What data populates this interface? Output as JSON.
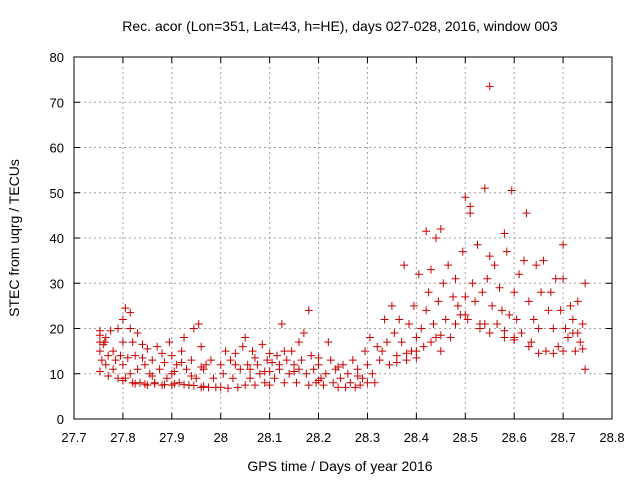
{
  "chart_data": {
    "type": "scatter",
    "title": "Rec. acor (Lon=351, Lat=43, h=HE), days 027-028, 2016, window 003",
    "xlabel": "GPS time / Days of year 2016",
    "ylabel": "STEC from uqrg / TECUs",
    "xlim": [
      27.7,
      28.8
    ],
    "ylim": [
      0,
      80
    ],
    "xticks": [
      27.7,
      27.8,
      27.9,
      28,
      28.1,
      28.2,
      28.3,
      28.4,
      28.5,
      28.6,
      28.7,
      28.8
    ],
    "xtick_labels": [
      "27.7",
      "27.8",
      "27.9",
      "28",
      "28.1",
      "28.2",
      "28.3",
      "28.4",
      "28.5",
      "28.6",
      "28.7",
      "28.8"
    ],
    "yticks": [
      0,
      10,
      20,
      30,
      40,
      50,
      60,
      70,
      80
    ],
    "ytick_labels": [
      "0",
      "10",
      "20",
      "30",
      "40",
      "50",
      "60",
      "70",
      "80"
    ],
    "grid": true,
    "marker": "+",
    "color": "#cc0000",
    "points": [
      [
        27.753,
        17
      ],
      [
        27.753,
        18.5
      ],
      [
        27.753,
        19.5
      ],
      [
        27.753,
        15
      ],
      [
        27.753,
        10.5
      ],
      [
        27.757,
        13
      ],
      [
        27.76,
        16.5
      ],
      [
        27.763,
        17
      ],
      [
        27.765,
        18
      ],
      [
        27.765,
        12
      ],
      [
        27.77,
        14
      ],
      [
        27.77,
        9.5
      ],
      [
        27.775,
        19.5
      ],
      [
        27.78,
        15
      ],
      [
        27.78,
        11
      ],
      [
        27.785,
        13
      ],
      [
        27.79,
        20
      ],
      [
        27.79,
        9
      ],
      [
        27.795,
        14
      ],
      [
        27.8,
        22
      ],
      [
        27.8,
        17
      ],
      [
        27.8,
        12
      ],
      [
        27.8,
        8.5
      ],
      [
        27.805,
        24.5
      ],
      [
        27.805,
        9
      ],
      [
        27.81,
        13.5
      ],
      [
        27.815,
        23.5
      ],
      [
        27.815,
        20
      ],
      [
        27.815,
        10
      ],
      [
        27.82,
        17
      ],
      [
        27.82,
        8
      ],
      [
        27.825,
        14
      ],
      [
        27.83,
        19
      ],
      [
        27.83,
        11
      ],
      [
        27.835,
        8
      ],
      [
        27.84,
        16.5
      ],
      [
        27.845,
        12
      ],
      [
        27.85,
        15.5
      ],
      [
        27.85,
        7.5
      ],
      [
        27.855,
        10
      ],
      [
        27.86,
        13
      ],
      [
        27.865,
        8
      ],
      [
        27.87,
        16
      ],
      [
        27.875,
        11
      ],
      [
        27.88,
        7.5
      ],
      [
        27.885,
        12.5
      ],
      [
        27.89,
        9
      ],
      [
        27.895,
        17
      ],
      [
        27.9,
        14
      ],
      [
        27.9,
        7.5
      ],
      [
        27.905,
        10.5
      ],
      [
        27.91,
        12
      ],
      [
        27.915,
        8
      ],
      [
        27.92,
        15
      ],
      [
        27.925,
        18
      ],
      [
        27.93,
        11
      ],
      [
        27.935,
        7.5
      ],
      [
        27.94,
        13
      ],
      [
        27.945,
        20
      ],
      [
        27.95,
        9
      ],
      [
        27.955,
        21
      ],
      [
        27.96,
        16
      ],
      [
        27.96,
        7
      ],
      [
        27.965,
        11
      ],
      [
        27.97,
        12
      ],
      [
        27.975,
        7
      ],
      [
        27.98,
        13
      ],
      [
        27.985,
        9
      ],
      [
        27.99,
        7
      ],
      [
        27.825,
        7.8
      ],
      [
        27.845,
        7.7
      ],
      [
        27.865,
        7.8
      ],
      [
        27.885,
        7.6
      ],
      [
        27.905,
        7.8
      ],
      [
        27.925,
        7.6
      ],
      [
        27.945,
        7.4
      ],
      [
        27.965,
        7.2
      ],
      [
        27.86,
        9.5
      ],
      [
        27.9,
        10
      ],
      [
        27.94,
        9.5
      ],
      [
        27.84,
        13.5
      ],
      [
        27.88,
        14.5
      ],
      [
        27.92,
        12.5
      ],
      [
        27.96,
        11.5
      ],
      [
        28.0,
        12
      ],
      [
        28.0,
        7
      ],
      [
        28.005,
        10
      ],
      [
        28.01,
        15
      ],
      [
        28.015,
        6.8
      ],
      [
        28.02,
        13
      ],
      [
        28.025,
        9
      ],
      [
        28.03,
        14.5
      ],
      [
        28.035,
        7
      ],
      [
        28.04,
        11
      ],
      [
        28.045,
        16
      ],
      [
        28.05,
        18
      ],
      [
        28.05,
        7.5
      ],
      [
        28.055,
        12
      ],
      [
        28.06,
        9
      ],
      [
        28.065,
        15
      ],
      [
        28.07,
        7.5
      ],
      [
        28.075,
        12
      ],
      [
        28.08,
        10
      ],
      [
        28.085,
        16.5
      ],
      [
        28.09,
        8
      ],
      [
        28.095,
        13
      ],
      [
        28.1,
        10.5
      ],
      [
        28.1,
        7.5
      ],
      [
        28.105,
        12.5
      ],
      [
        28.11,
        9
      ],
      [
        28.115,
        14
      ],
      [
        28.12,
        11
      ],
      [
        28.125,
        21
      ],
      [
        28.13,
        8
      ],
      [
        28.135,
        13
      ],
      [
        28.14,
        10
      ],
      [
        28.145,
        15
      ],
      [
        28.15,
        12
      ],
      [
        28.155,
        8
      ],
      [
        28.16,
        17
      ],
      [
        28.165,
        13
      ],
      [
        28.17,
        19
      ],
      [
        28.175,
        10
      ],
      [
        28.18,
        24
      ],
      [
        28.18,
        7.5
      ],
      [
        28.185,
        14
      ],
      [
        28.19,
        11
      ],
      [
        28.195,
        8
      ],
      [
        28.2,
        12
      ],
      [
        28.205,
        9
      ],
      [
        28.21,
        7.5
      ],
      [
        28.215,
        10
      ],
      [
        28.22,
        17
      ],
      [
        28.225,
        13
      ],
      [
        28.23,
        8
      ],
      [
        28.235,
        11
      ],
      [
        28.24,
        7
      ],
      [
        28.245,
        9
      ],
      [
        28.25,
        12
      ],
      [
        28.255,
        7
      ],
      [
        28.26,
        10
      ],
      [
        28.265,
        8
      ],
      [
        28.27,
        13
      ],
      [
        28.275,
        7
      ],
      [
        28.28,
        11
      ],
      [
        28.285,
        7.5
      ],
      [
        28.29,
        9
      ],
      [
        28.295,
        15
      ],
      [
        28.3,
        12
      ],
      [
        28.3,
        8
      ],
      [
        28.305,
        18
      ],
      [
        28.31,
        10
      ],
      [
        28.315,
        8
      ],
      [
        28.32,
        16
      ],
      [
        28.325,
        13
      ],
      [
        28.03,
        12
      ],
      [
        28.06,
        11
      ],
      [
        28.09,
        10.5
      ],
      [
        28.12,
        12
      ],
      [
        28.15,
        10.5
      ],
      [
        28.2,
        8.5
      ],
      [
        28.24,
        11.5
      ],
      [
        28.28,
        9.5
      ],
      [
        28.2,
        13.5
      ],
      [
        28.16,
        11
      ],
      [
        28.13,
        15
      ],
      [
        28.07,
        13.5
      ],
      [
        28.1,
        14.5
      ],
      [
        28.33,
        15
      ],
      [
        28.335,
        22
      ],
      [
        28.34,
        17
      ],
      [
        28.345,
        12
      ],
      [
        28.35,
        25
      ],
      [
        28.355,
        19
      ],
      [
        28.36,
        14
      ],
      [
        28.365,
        22
      ],
      [
        28.37,
        17
      ],
      [
        28.375,
        34
      ],
      [
        28.38,
        13
      ],
      [
        28.385,
        21
      ],
      [
        28.39,
        15
      ],
      [
        28.395,
        25
      ],
      [
        28.4,
        18
      ],
      [
        28.4,
        13.5
      ],
      [
        28.405,
        32
      ],
      [
        28.41,
        20
      ],
      [
        28.415,
        16
      ],
      [
        28.42,
        41.5
      ],
      [
        28.42,
        24
      ],
      [
        28.425,
        28
      ],
      [
        28.43,
        33
      ],
      [
        28.435,
        21
      ],
      [
        28.44,
        18
      ],
      [
        28.44,
        40
      ],
      [
        28.445,
        26
      ],
      [
        28.45,
        15
      ],
      [
        28.45,
        42
      ],
      [
        28.455,
        30
      ],
      [
        28.46,
        22
      ],
      [
        28.465,
        34
      ],
      [
        28.47,
        18
      ],
      [
        28.475,
        27
      ],
      [
        28.48,
        31
      ],
      [
        28.485,
        25
      ],
      [
        28.49,
        23
      ],
      [
        28.495,
        37
      ],
      [
        28.5,
        49
      ],
      [
        28.5,
        27
      ],
      [
        28.505,
        22
      ],
      [
        28.51,
        47
      ],
      [
        28.51,
        45.5
      ],
      [
        28.515,
        30
      ],
      [
        28.52,
        26
      ],
      [
        28.525,
        38.5
      ],
      [
        28.53,
        21
      ],
      [
        28.535,
        28
      ],
      [
        28.54,
        51
      ],
      [
        28.54,
        21
      ],
      [
        28.545,
        31
      ],
      [
        28.55,
        73.5
      ],
      [
        28.55,
        36
      ],
      [
        28.555,
        25
      ],
      [
        28.56,
        34
      ],
      [
        28.565,
        21
      ],
      [
        28.57,
        29
      ],
      [
        28.575,
        24
      ],
      [
        28.58,
        41
      ],
      [
        28.58,
        18
      ],
      [
        28.585,
        37
      ],
      [
        28.59,
        23
      ],
      [
        28.595,
        50.5
      ],
      [
        28.6,
        28
      ],
      [
        28.6,
        17.5
      ],
      [
        28.605,
        22
      ],
      [
        28.61,
        32
      ],
      [
        28.615,
        19
      ],
      [
        28.62,
        35
      ],
      [
        28.625,
        45.5
      ],
      [
        28.63,
        26
      ],
      [
        28.635,
        17
      ],
      [
        28.64,
        22
      ],
      [
        28.645,
        34
      ],
      [
        28.65,
        20
      ],
      [
        28.655,
        28
      ],
      [
        28.66,
        35
      ],
      [
        28.665,
        15
      ],
      [
        28.67,
        24
      ],
      [
        28.675,
        28
      ],
      [
        28.68,
        20
      ],
      [
        28.685,
        31
      ],
      [
        28.69,
        16
      ],
      [
        28.695,
        24
      ],
      [
        28.7,
        38.5
      ],
      [
        28.7,
        31
      ],
      [
        28.705,
        20
      ],
      [
        28.71,
        18
      ],
      [
        28.715,
        25
      ],
      [
        28.72,
        22
      ],
      [
        28.725,
        15
      ],
      [
        28.73,
        26
      ],
      [
        28.73,
        19
      ],
      [
        28.735,
        17
      ],
      [
        28.74,
        21
      ],
      [
        28.74,
        15.5
      ],
      [
        28.745,
        30
      ],
      [
        28.745,
        11
      ],
      [
        28.4,
        15
      ],
      [
        28.45,
        18.5
      ],
      [
        28.5,
        23
      ],
      [
        28.55,
        19
      ],
      [
        28.6,
        18
      ],
      [
        28.65,
        14.5
      ],
      [
        28.7,
        15
      ],
      [
        28.43,
        17
      ],
      [
        28.48,
        21
      ],
      [
        28.53,
        20
      ],
      [
        28.58,
        19.5
      ],
      [
        28.63,
        16
      ],
      [
        28.68,
        14.5
      ],
      [
        28.72,
        19
      ],
      [
        28.36,
        12.5
      ],
      [
        28.38,
        14.5
      ]
    ]
  }
}
